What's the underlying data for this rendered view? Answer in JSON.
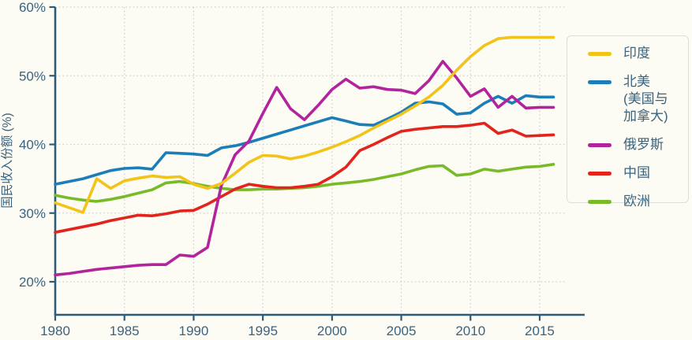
{
  "colors": {
    "background": "#FCFCF5",
    "axis": "#2E5B78",
    "tick_text": "#3A6380",
    "grid": "#CCCCC6",
    "legend_border": "#DDDDD8"
  },
  "chart_data": {
    "type": "line",
    "title": "",
    "xlabel": "",
    "ylabel": "国民收入份额 (%)",
    "xlim": [
      1980,
      2016
    ],
    "ylim": [
      20,
      60
    ],
    "grid": "dotted",
    "legend_position": "right",
    "x_ticks": [
      1980,
      1985,
      1990,
      1995,
      2000,
      2005,
      2010,
      2015
    ],
    "y_ticks": [
      {
        "value": 60,
        "label": "60%"
      },
      {
        "value": 50,
        "label": "50%"
      },
      {
        "value": 40,
        "label": "40%"
      },
      {
        "value": 30,
        "label": "30%"
      },
      {
        "value": 20,
        "label": "20%"
      }
    ],
    "x": [
      1980,
      1981,
      1982,
      1983,
      1984,
      1985,
      1986,
      1987,
      1988,
      1989,
      1990,
      1991,
      1992,
      1993,
      1994,
      1995,
      1996,
      1997,
      1998,
      1999,
      2000,
      2001,
      2002,
      2003,
      2004,
      2005,
      2006,
      2007,
      2008,
      2009,
      2010,
      2011,
      2012,
      2013,
      2014,
      2015,
      2016
    ],
    "series": [
      {
        "id": "india",
        "name": "印度",
        "legend_lines": [
          "印度"
        ],
        "color": "#F2C318",
        "z": 4,
        "values": [
          31.5,
          30.8,
          30.1,
          35.0,
          33.6,
          34.7,
          35.1,
          35.4,
          35.2,
          35.3,
          34.2,
          33.6,
          34.3,
          35.8,
          37.4,
          38.4,
          38.3,
          37.9,
          38.3,
          38.9,
          39.6,
          40.4,
          41.3,
          42.4,
          43.4,
          44.4,
          45.6,
          46.9,
          48.6,
          50.8,
          52.8,
          54.4,
          55.4,
          55.6,
          55.6,
          55.6,
          55.6
        ]
      },
      {
        "id": "north-america",
        "name": "北美 (美国与加拿大)",
        "legend_lines": [
          "北美",
          "(美国与",
          "加拿大)"
        ],
        "color": "#1B7EB8",
        "z": 2,
        "values": [
          34.2,
          34.6,
          35.0,
          35.6,
          36.2,
          36.5,
          36.6,
          36.4,
          38.8,
          38.7,
          38.6,
          38.4,
          39.5,
          39.8,
          40.3,
          40.9,
          41.5,
          42.1,
          42.7,
          43.3,
          43.9,
          43.4,
          42.9,
          42.8,
          43.7,
          44.7,
          46.0,
          46.2,
          45.9,
          44.4,
          44.6,
          46.0,
          47.0,
          46.0,
          47.1,
          46.9,
          46.9
        ]
      },
      {
        "id": "russia",
        "name": "俄罗斯",
        "legend_lines": [
          "俄罗斯"
        ],
        "color": "#B2249E",
        "z": 3,
        "values": [
          21.0,
          21.2,
          21.5,
          21.8,
          22.0,
          22.2,
          22.4,
          22.5,
          22.5,
          23.9,
          23.7,
          25.0,
          34.0,
          38.5,
          40.5,
          44.5,
          48.3,
          45.2,
          43.6,
          45.7,
          48.0,
          49.5,
          48.2,
          48.4,
          48.0,
          47.9,
          47.4,
          49.3,
          52.1,
          49.7,
          47.0,
          48.1,
          45.4,
          47.0,
          45.3,
          45.4,
          45.4
        ]
      },
      {
        "id": "china",
        "name": "中国",
        "legend_lines": [
          "中国"
        ],
        "color": "#E2251C",
        "z": 1,
        "values": [
          27.2,
          27.6,
          28.0,
          28.4,
          28.9,
          29.3,
          29.7,
          29.6,
          29.9,
          30.3,
          30.4,
          31.3,
          32.4,
          33.5,
          34.2,
          33.9,
          33.7,
          33.7,
          33.9,
          34.2,
          35.3,
          36.7,
          39.1,
          40.0,
          41.0,
          41.9,
          42.2,
          42.4,
          42.6,
          42.6,
          42.8,
          43.1,
          41.6,
          42.1,
          41.2,
          41.3,
          41.4
        ]
      },
      {
        "id": "europe",
        "name": "欧洲",
        "legend_lines": [
          "欧洲"
        ],
        "color": "#79BA28",
        "z": 0,
        "values": [
          32.6,
          32.2,
          31.9,
          31.7,
          32.0,
          32.4,
          32.9,
          33.4,
          34.4,
          34.6,
          34.3,
          33.9,
          33.6,
          33.4,
          33.4,
          33.5,
          33.5,
          33.6,
          33.7,
          33.9,
          34.2,
          34.4,
          34.6,
          34.9,
          35.3,
          35.7,
          36.3,
          36.8,
          36.9,
          35.5,
          35.7,
          36.4,
          36.1,
          36.4,
          36.7,
          36.8,
          37.1
        ]
      }
    ]
  }
}
